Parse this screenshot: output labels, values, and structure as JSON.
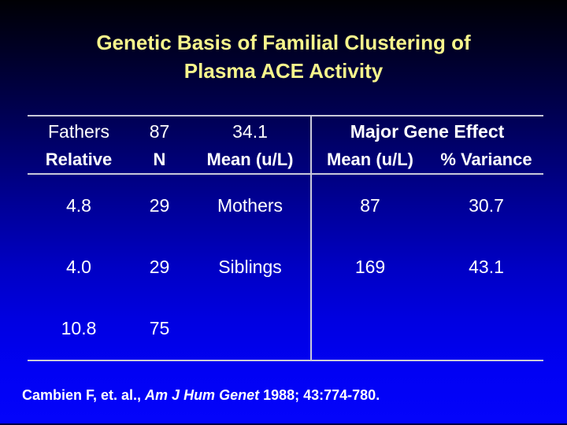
{
  "colors": {
    "background_top": "#000004",
    "background_bottom": "#0404fb",
    "title_text": "#f7f58c",
    "body_text": "#ffffff",
    "table_line": "#c9c9da"
  },
  "title": {
    "line1": "Genetic Basis of Familial Clustering of",
    "line2": "Plasma ACE Activity"
  },
  "table": {
    "group_header": "Major Gene Effect",
    "columns": {
      "relative": "Relative",
      "n": "N",
      "mean": "Mean (u/L)",
      "mge_mean": "Mean (u/L)",
      "variance": "% Variance"
    },
    "rows": [
      {
        "relative": "Fathers",
        "n": "87",
        "mean": "34.1",
        "mge_mean": "4.8",
        "variance": "29"
      },
      {
        "relative": "Mothers",
        "n": "87",
        "mean": "30.7",
        "mge_mean": "4.0",
        "variance": "29"
      },
      {
        "relative": "Siblings",
        "n": "169",
        "mean": "43.1",
        "mge_mean": "10.8",
        "variance": "75"
      }
    ]
  },
  "citation": {
    "prefix": "Cambien F, et. al., ",
    "journal": "Am J Hum Genet",
    "suffix": " 1988; 43:774-780."
  }
}
